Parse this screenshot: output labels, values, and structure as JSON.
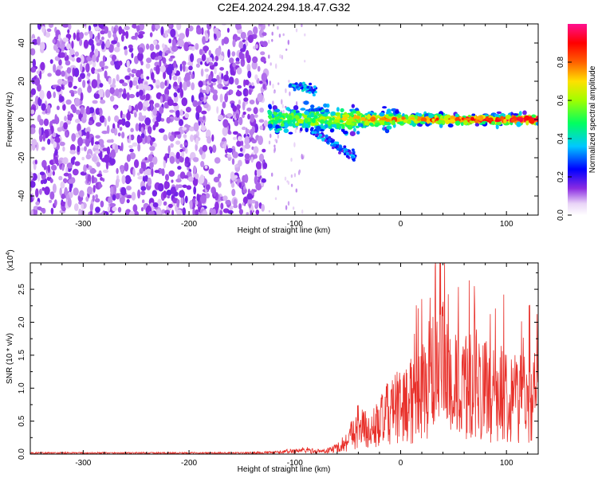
{
  "title": "C2E4.2024.294.18.47.G32",
  "panel_spectrogram": {
    "xlabel": "Height of straight line (km)",
    "ylabel": "Frequency (Hz)",
    "colorbar_label": "Normalized spectral amplitude"
  },
  "panel_snr": {
    "xlabel": "Height of straight line (km)",
    "ylabel": "SNR (10 * v/v)",
    "multiplier": "(x10",
    "multiplier_exp": "4",
    "multiplier_close": ")"
  },
  "colors": {
    "snr_line": "#e8302a",
    "colormap": [
      "#ffffff",
      "#8a2be2",
      "#0000ff",
      "#00c8ff",
      "#00ff60",
      "#c8ff00",
      "#ffd000",
      "#ff6000",
      "#ff0000",
      "#ff1090"
    ]
  },
  "chart_data": [
    {
      "type": "heatmap",
      "title": "C2E4.2024.294.18.47.G32",
      "xlabel": "Height of straight line (km)",
      "ylabel": "Frequency (Hz)",
      "xlim": [
        -350,
        130
      ],
      "ylim": [
        -50,
        50
      ],
      "x_ticks": [
        "-300",
        "-200",
        "-100",
        "0",
        "100"
      ],
      "x_tick_values": [
        -300,
        -200,
        -100,
        0,
        100
      ],
      "y_ticks": [
        "-40",
        "-20",
        "0",
        "20",
        "40"
      ],
      "y_tick_values": [
        -40,
        -20,
        0,
        20,
        40
      ],
      "colorbar": {
        "label": "Normalized spectral amplitude",
        "range": [
          0.0,
          1.0
        ],
        "ticks": [
          "0.0",
          "0.2",
          "0.4",
          "0.6",
          "0.8"
        ],
        "tick_values": [
          0.0,
          0.2,
          0.4,
          0.6,
          0.8
        ],
        "colormap": "rainbow"
      },
      "regions": [
        {
          "description": "broadband noise",
          "x_range": [
            -350,
            -127
          ],
          "y_range": [
            -50,
            50
          ],
          "amplitude": 0.15
        },
        {
          "description": "main signal band",
          "x_range": [
            -125,
            130
          ],
          "center_hz": 0,
          "amplitude_range": [
            0.2,
            0.9
          ]
        },
        {
          "description": "secondary trace",
          "x_range": [
            -105,
            -80
          ],
          "frequency_hz": 18,
          "amplitude": 0.35
        },
        {
          "description": "descending trace",
          "x_range": [
            -85,
            -42
          ],
          "frequency_hz_range": [
            -5,
            -20
          ],
          "amplitude": 0.25
        }
      ]
    },
    {
      "type": "line",
      "xlabel": "Height of straight line (km)",
      "ylabel": "SNR (10 * v/v)",
      "y_multiplier": 10000,
      "xlim": [
        -350,
        130
      ],
      "ylim": [
        0,
        2.9
      ],
      "x_ticks": [
        "-300",
        "-200",
        "-100",
        "0",
        "100"
      ],
      "x_tick_values": [
        -300,
        -200,
        -100,
        0,
        100
      ],
      "y_ticks": [
        "0.0",
        "0.5",
        "1.0",
        "1.5",
        "2.0",
        "2.5"
      ],
      "y_tick_values": [
        0.0,
        0.5,
        1.0,
        1.5,
        2.0,
        2.5
      ],
      "series": [
        {
          "color": "#e8302a",
          "x": [
            -350,
            -300,
            -250,
            -200,
            -150,
            -120,
            -100,
            -90,
            -80,
            -70,
            -60,
            -50,
            -45,
            -40,
            -35,
            -30,
            -20,
            -10,
            0,
            10,
            20,
            30,
            40,
            50,
            60,
            70,
            80,
            90,
            100,
            110,
            120,
            130
          ],
          "y": [
            0.02,
            0.02,
            0.02,
            0.02,
            0.02,
            0.03,
            0.06,
            0.08,
            0.05,
            0.06,
            0.12,
            0.25,
            0.45,
            0.55,
            0.5,
            0.4,
            0.6,
            0.8,
            0.9,
            1.0,
            1.2,
            1.5,
            1.6,
            1.3,
            1.2,
            1.4,
            1.2,
            1.1,
            1.2,
            1.1,
            1.1,
            1.1
          ]
        }
      ]
    }
  ]
}
